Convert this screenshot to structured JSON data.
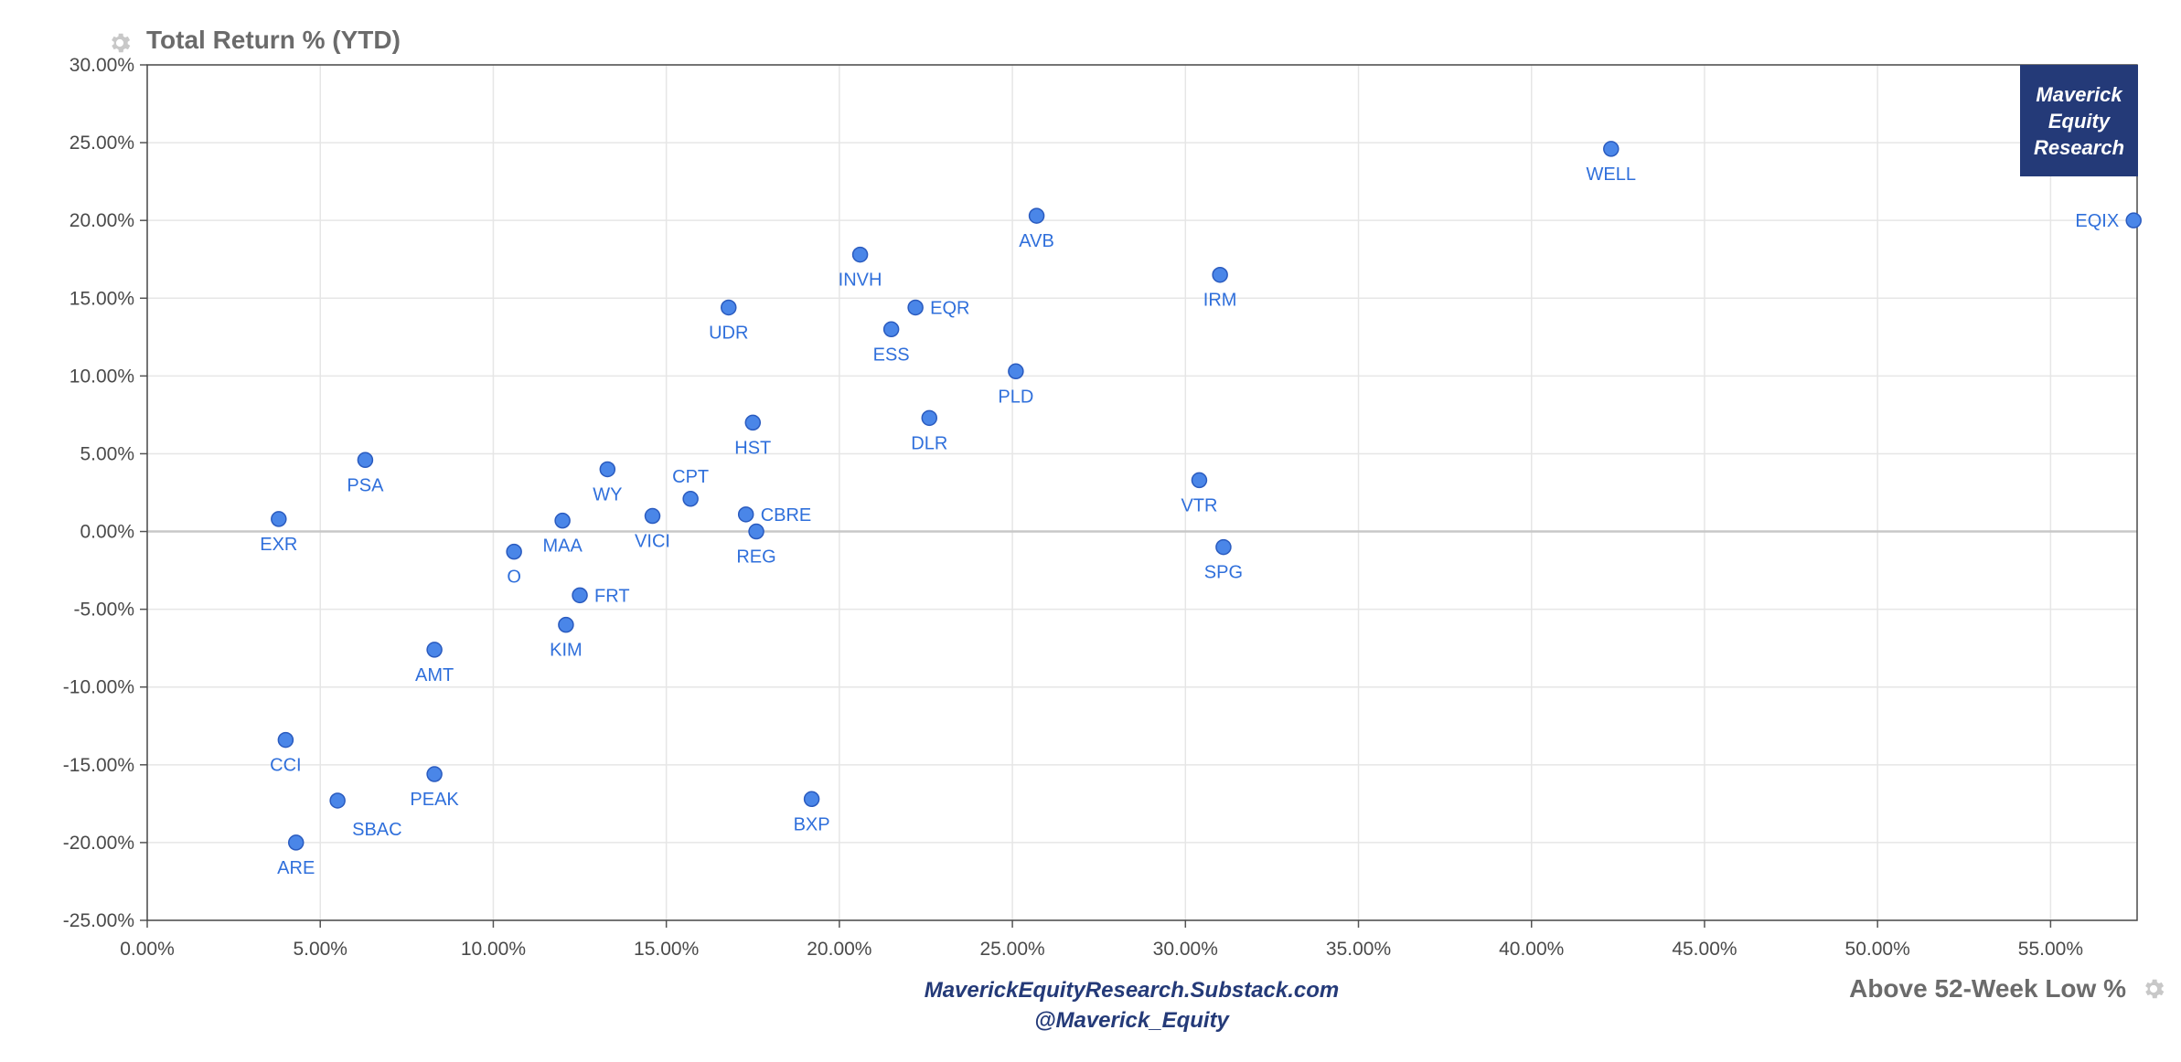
{
  "chart_data": {
    "type": "scatter",
    "ylabel": "Total Return % (YTD)",
    "xlabel": "Above 52-Week Low %",
    "xlim": [
      0,
      57.5
    ],
    "ylim": [
      -25,
      30
    ],
    "x_ticks": [
      "0.00%",
      "5.00%",
      "10.00%",
      "15.00%",
      "20.00%",
      "25.00%",
      "30.00%",
      "35.00%",
      "40.00%",
      "45.00%",
      "50.00%",
      "55.00%"
    ],
    "y_ticks": [
      "30.00%",
      "25.00%",
      "20.00%",
      "15.00%",
      "10.00%",
      "5.00%",
      "0.00%",
      "-5.00%",
      "-10.00%",
      "-15.00%",
      "-20.00%",
      "-25.00%"
    ],
    "grid": true,
    "marker_color": "#4a86e8",
    "label_color": "#2f6fdb",
    "points": [
      {
        "label": "WELL",
        "x": 42.3,
        "y": 24.6
      },
      {
        "label": "EQIX",
        "x": 57.4,
        "y": 20.0
      },
      {
        "label": "AVB",
        "x": 25.7,
        "y": 20.3
      },
      {
        "label": "INVH",
        "x": 20.6,
        "y": 17.8
      },
      {
        "label": "IRM",
        "x": 31.0,
        "y": 16.5
      },
      {
        "label": "UDR",
        "x": 16.8,
        "y": 14.4
      },
      {
        "label": "EQR",
        "x": 22.2,
        "y": 14.4
      },
      {
        "label": "ESS",
        "x": 21.5,
        "y": 13.0
      },
      {
        "label": "PLD",
        "x": 25.1,
        "y": 10.3
      },
      {
        "label": "DLR",
        "x": 22.6,
        "y": 7.3
      },
      {
        "label": "HST",
        "x": 17.5,
        "y": 7.0
      },
      {
        "label": "PSA",
        "x": 6.3,
        "y": 4.6
      },
      {
        "label": "WY",
        "x": 13.3,
        "y": 4.0
      },
      {
        "label": "VTR",
        "x": 30.4,
        "y": 3.3
      },
      {
        "label": "CPT",
        "x": 15.7,
        "y": 2.1
      },
      {
        "label": "CBRE",
        "x": 17.3,
        "y": 1.1
      },
      {
        "label": "VICI",
        "x": 14.6,
        "y": 1.0
      },
      {
        "label": "EXR",
        "x": 3.8,
        "y": 0.8
      },
      {
        "label": "MAA",
        "x": 12.0,
        "y": 0.7
      },
      {
        "label": "REG",
        "x": 17.6,
        "y": 0.0
      },
      {
        "label": "SPG",
        "x": 31.1,
        "y": -1.0
      },
      {
        "label": "O",
        "x": 10.6,
        "y": -1.3
      },
      {
        "label": "FRT",
        "x": 12.5,
        "y": -4.1
      },
      {
        "label": "KIM",
        "x": 12.1,
        "y": -6.0
      },
      {
        "label": "AMT",
        "x": 8.3,
        "y": -7.6
      },
      {
        "label": "CCI",
        "x": 4.0,
        "y": -13.4
      },
      {
        "label": "PEAK",
        "x": 8.3,
        "y": -15.6
      },
      {
        "label": "BXP",
        "x": 19.2,
        "y": -17.2
      },
      {
        "label": "SBAC",
        "x": 5.5,
        "y": -17.3
      },
      {
        "label": "ARE",
        "x": 4.3,
        "y": -20.0
      }
    ]
  },
  "watermark": "Maverick\nEquity\nResearch",
  "footer": {
    "line1": "MaverickEquityResearch.Substack.com",
    "line2": "@Maverick_Equity"
  },
  "icons": [
    "gear-icon",
    "gear-icon"
  ]
}
